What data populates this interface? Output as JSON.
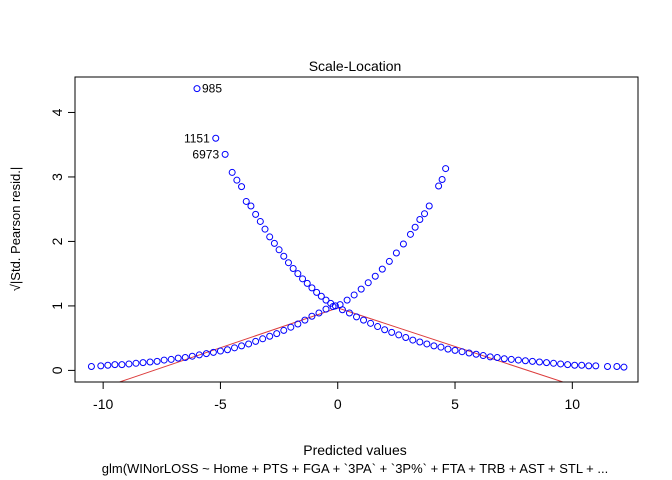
{
  "chart_data": {
    "type": "scatter",
    "title": "Scale-Location",
    "xlabel": "Predicted values",
    "ylabel": "√|Std. Pearson resid.|",
    "subtitle": "glm(WINorLOSS ~ Home + PTS + FGA + `3PA` + `3P%` + FTA + TRB + AST + STL +  ...",
    "xlim": [
      -11.2,
      12.8
    ],
    "ylim": [
      -0.18,
      4.55
    ],
    "xticks": [
      -10,
      -5,
      0,
      5,
      10
    ],
    "yticks": [
      0,
      1,
      2,
      3,
      4
    ],
    "xtick_labels": [
      "-10",
      "-5",
      "0",
      "5",
      "10"
    ],
    "ytick_labels": [
      "0",
      "1",
      "2",
      "3",
      "4"
    ],
    "grid": false,
    "point_color": "#0000ff",
    "smooth_color": "#dc3c3c",
    "series": [
      {
        "points": [
          [
            -10.5,
            0.06
          ],
          [
            -10.1,
            0.07
          ],
          [
            -9.8,
            0.08
          ],
          [
            -9.5,
            0.09
          ],
          [
            -9.2,
            0.09
          ],
          [
            -8.9,
            0.1
          ],
          [
            -8.6,
            0.11
          ],
          [
            -8.3,
            0.12
          ],
          [
            -8.0,
            0.13
          ],
          [
            -7.7,
            0.14
          ],
          [
            -7.4,
            0.16
          ],
          [
            -7.1,
            0.17
          ],
          [
            -6.8,
            0.19
          ],
          [
            -6.5,
            0.2
          ],
          [
            -6.2,
            0.22
          ],
          [
            -5.9,
            0.24
          ],
          [
            -5.6,
            0.26
          ],
          [
            -5.3,
            0.28
          ],
          [
            -5.0,
            0.3
          ],
          [
            -4.7,
            0.32
          ],
          [
            -4.4,
            0.35
          ],
          [
            -4.1,
            0.38
          ],
          [
            -3.8,
            0.41
          ],
          [
            -3.5,
            0.45
          ],
          [
            -3.2,
            0.49
          ],
          [
            -2.9,
            0.53
          ],
          [
            -2.6,
            0.57
          ],
          [
            -2.3,
            0.62
          ],
          [
            -2.0,
            0.67
          ],
          [
            -1.7,
            0.72
          ],
          [
            -1.4,
            0.78
          ],
          [
            -1.1,
            0.84
          ],
          [
            -0.8,
            0.89
          ],
          [
            -0.5,
            0.95
          ],
          [
            -0.2,
            0.99
          ],
          [
            0.1,
            1.02
          ],
          [
            0.4,
            1.09
          ],
          [
            0.7,
            1.17
          ],
          [
            1.0,
            1.26
          ],
          [
            1.3,
            1.36
          ],
          [
            1.6,
            1.46
          ],
          [
            1.9,
            1.57
          ],
          [
            2.2,
            1.69
          ],
          [
            2.5,
            1.82
          ],
          [
            2.8,
            1.96
          ],
          [
            3.1,
            2.11
          ],
          [
            3.3,
            2.22
          ],
          [
            3.5,
            2.34
          ],
          [
            3.7,
            2.43
          ],
          [
            3.9,
            2.55
          ],
          [
            4.3,
            2.86
          ],
          [
            4.45,
            2.96
          ],
          [
            4.6,
            3.13
          ],
          [
            -6.0,
            4.37
          ],
          [
            -5.2,
            3.6
          ],
          [
            -4.8,
            3.35
          ],
          [
            -4.5,
            3.07
          ],
          [
            -4.3,
            2.95
          ],
          [
            -4.1,
            2.85
          ],
          [
            -3.9,
            2.62
          ],
          [
            -3.7,
            2.55
          ],
          [
            -3.5,
            2.42
          ],
          [
            -3.3,
            2.31
          ],
          [
            -3.1,
            2.19
          ],
          [
            -2.9,
            2.07
          ],
          [
            -2.7,
            1.97
          ],
          [
            -2.5,
            1.87
          ],
          [
            -2.3,
            1.77
          ],
          [
            -2.1,
            1.67
          ],
          [
            -1.9,
            1.58
          ],
          [
            -1.7,
            1.5
          ],
          [
            -1.5,
            1.42
          ],
          [
            -1.3,
            1.35
          ],
          [
            -1.1,
            1.28
          ],
          [
            -0.9,
            1.21
          ],
          [
            -0.7,
            1.15
          ],
          [
            -0.5,
            1.09
          ],
          [
            -0.3,
            1.04
          ],
          [
            -0.1,
            1.0
          ],
          [
            0.2,
            0.94
          ],
          [
            0.5,
            0.89
          ],
          [
            0.8,
            0.83
          ],
          [
            1.1,
            0.78
          ],
          [
            1.4,
            0.73
          ],
          [
            1.7,
            0.68
          ],
          [
            2.0,
            0.63
          ],
          [
            2.3,
            0.59
          ],
          [
            2.6,
            0.55
          ],
          [
            2.9,
            0.51
          ],
          [
            3.2,
            0.47
          ],
          [
            3.5,
            0.44
          ],
          [
            3.8,
            0.41
          ],
          [
            4.1,
            0.38
          ],
          [
            4.4,
            0.36
          ],
          [
            4.7,
            0.33
          ],
          [
            5.0,
            0.31
          ],
          [
            5.3,
            0.29
          ],
          [
            5.6,
            0.27
          ],
          [
            5.9,
            0.25
          ],
          [
            6.2,
            0.23
          ],
          [
            6.5,
            0.21
          ],
          [
            6.8,
            0.2
          ],
          [
            7.1,
            0.18
          ],
          [
            7.4,
            0.17
          ],
          [
            7.7,
            0.16
          ],
          [
            8.0,
            0.15
          ],
          [
            8.3,
            0.14
          ],
          [
            8.6,
            0.13
          ],
          [
            8.9,
            0.12
          ],
          [
            9.2,
            0.11
          ],
          [
            9.5,
            0.1
          ],
          [
            9.8,
            0.09
          ],
          [
            10.1,
            0.08
          ],
          [
            10.4,
            0.08
          ],
          [
            10.7,
            0.07
          ],
          [
            11.0,
            0.07
          ],
          [
            11.5,
            0.06
          ],
          [
            11.9,
            0.06
          ],
          [
            12.2,
            0.05
          ]
        ]
      }
    ],
    "smooth_line": [
      [
        -9.3,
        -0.18
      ],
      [
        0.0,
        0.97
      ],
      [
        9.6,
        -0.18
      ]
    ],
    "annotations": [
      {
        "text": "985",
        "x": -6.0,
        "y": 4.37,
        "side": "right"
      },
      {
        "text": "1151",
        "x": -5.2,
        "y": 3.6,
        "side": "left"
      },
      {
        "text": "6973",
        "x": -4.8,
        "y": 3.35,
        "side": "left"
      }
    ]
  }
}
